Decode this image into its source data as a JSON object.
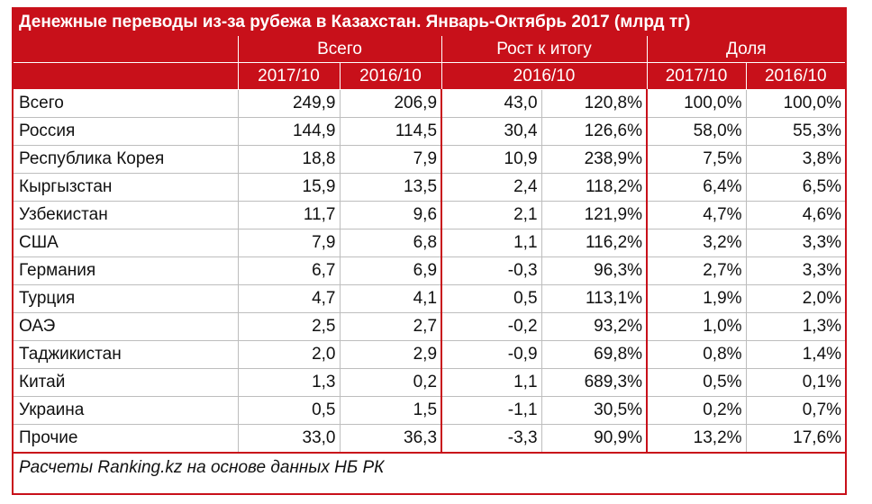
{
  "chart_data": {
    "type": "table",
    "title": "Денежные переводы из-за рубежа в Казахстан. Январь-Октябрь 2017 (млрд тг)",
    "groups": [
      "Всего",
      "Рост к итогу",
      "Доля"
    ],
    "columns": [
      "2017/10",
      "2016/10",
      "2016/10",
      "2017/10",
      "2016/10"
    ],
    "rows": [
      {
        "name": "Всего",
        "v2017": "249,9",
        "v2016": "206,9",
        "diff": "43,0",
        "growth": "120,8%",
        "share2017": "100,0%",
        "share2016": "100,0%"
      },
      {
        "name": "Россия",
        "v2017": "144,9",
        "v2016": "114,5",
        "diff": "30,4",
        "growth": "126,6%",
        "share2017": "58,0%",
        "share2016": "55,3%"
      },
      {
        "name": "Республика Корея",
        "v2017": "18,8",
        "v2016": "7,9",
        "diff": "10,9",
        "growth": "238,9%",
        "share2017": "7,5%",
        "share2016": "3,8%"
      },
      {
        "name": "Кыргызстан",
        "v2017": "15,9",
        "v2016": "13,5",
        "diff": "2,4",
        "growth": "118,2%",
        "share2017": "6,4%",
        "share2016": "6,5%"
      },
      {
        "name": "Узбекистан",
        "v2017": "11,7",
        "v2016": "9,6",
        "diff": "2,1",
        "growth": "121,9%",
        "share2017": "4,7%",
        "share2016": "4,6%"
      },
      {
        "name": "США",
        "v2017": "7,9",
        "v2016": "6,8",
        "diff": "1,1",
        "growth": "116,2%",
        "share2017": "3,2%",
        "share2016": "3,3%"
      },
      {
        "name": "Германия",
        "v2017": "6,7",
        "v2016": "6,9",
        "diff": "-0,3",
        "growth": "96,3%",
        "share2017": "2,7%",
        "share2016": "3,3%"
      },
      {
        "name": "Турция",
        "v2017": "4,7",
        "v2016": "4,1",
        "diff": "0,5",
        "growth": "113,1%",
        "share2017": "1,9%",
        "share2016": "2,0%"
      },
      {
        "name": "ОАЭ",
        "v2017": "2,5",
        "v2016": "2,7",
        "diff": "-0,2",
        "growth": "93,2%",
        "share2017": "1,0%",
        "share2016": "1,3%"
      },
      {
        "name": "Таджикистан",
        "v2017": "2,0",
        "v2016": "2,9",
        "diff": "-0,9",
        "growth": "69,8%",
        "share2017": "0,8%",
        "share2016": "1,4%"
      },
      {
        "name": "Китай",
        "v2017": "1,3",
        "v2016": "0,2",
        "diff": "1,1",
        "growth": "689,3%",
        "share2017": "0,5%",
        "share2016": "0,1%"
      },
      {
        "name": "Украина",
        "v2017": "0,5",
        "v2016": "1,5",
        "diff": "-1,1",
        "growth": "30,5%",
        "share2017": "0,2%",
        "share2016": "0,7%"
      },
      {
        "name": "Прочие",
        "v2017": "33,0",
        "v2016": "36,3",
        "diff": "-3,3",
        "growth": "90,9%",
        "share2017": "13,2%",
        "share2016": "17,6%"
      }
    ],
    "source": "Расчеты Ranking.kz на основе данных НБ РК"
  },
  "colors": {
    "header_bg": "#c8101a",
    "header_text": "#ffffff"
  }
}
